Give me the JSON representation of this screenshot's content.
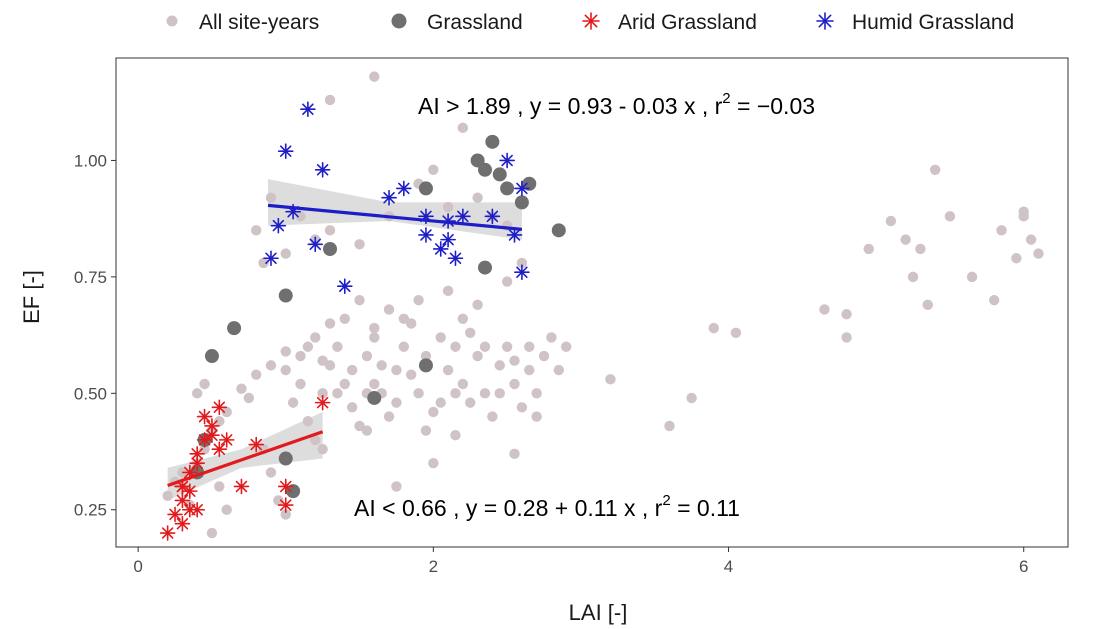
{
  "chart_data": {
    "type": "scatter",
    "xlabel": "LAI [-]",
    "ylabel": "EF [-]",
    "xlim": [
      -0.15,
      6.3
    ],
    "ylim": [
      0.17,
      1.22
    ],
    "x_ticks": [
      0,
      2,
      4,
      6
    ],
    "x_tick_labels": [
      "0",
      "2",
      "4",
      "6"
    ],
    "y_ticks": [
      0.25,
      0.5,
      0.75,
      1.0
    ],
    "y_tick_labels": [
      "0.25",
      "0.50",
      "0.75",
      "1.00"
    ],
    "grid": false,
    "legend_position": "top",
    "colors": {
      "all": "#cfc3c6",
      "grassland": "#6f6f6f",
      "arid": "#e31a1c",
      "humid": "#1e1ec8",
      "ribbon": "#b3b3b3"
    },
    "series": [
      {
        "name": "All site-years",
        "marker": "circle",
        "points": [
          [
            0.2,
            0.28
          ],
          [
            0.25,
            0.31
          ],
          [
            0.3,
            0.33
          ],
          [
            0.35,
            0.26
          ],
          [
            0.4,
            0.35
          ],
          [
            0.45,
            0.38
          ],
          [
            0.5,
            0.42
          ],
          [
            0.55,
            0.44
          ],
          [
            0.4,
            0.5
          ],
          [
            0.45,
            0.52
          ],
          [
            0.6,
            0.46
          ],
          [
            0.7,
            0.51
          ],
          [
            0.75,
            0.49
          ],
          [
            0.8,
            0.54
          ],
          [
            0.85,
            0.38
          ],
          [
            0.9,
            0.33
          ],
          [
            0.95,
            0.27
          ],
          [
            1.0,
            0.24
          ],
          [
            0.5,
            0.2
          ],
          [
            0.55,
            0.3
          ],
          [
            0.6,
            0.25
          ],
          [
            1.0,
            0.55
          ],
          [
            1.05,
            0.48
          ],
          [
            1.1,
            0.52
          ],
          [
            1.15,
            0.44
          ],
          [
            1.2,
            0.4
          ],
          [
            1.25,
            0.5
          ],
          [
            1.3,
            0.56
          ],
          [
            1.35,
            0.6
          ],
          [
            1.4,
            0.52
          ],
          [
            1.45,
            0.47
          ],
          [
            1.5,
            0.43
          ],
          [
            1.55,
            0.58
          ],
          [
            1.6,
            0.62
          ],
          [
            1.65,
            0.5
          ],
          [
            1.7,
            0.45
          ],
          [
            1.75,
            0.55
          ],
          [
            1.8,
            0.6
          ],
          [
            1.85,
            0.65
          ],
          [
            1.9,
            0.5
          ],
          [
            1.95,
            0.42
          ],
          [
            2.0,
            0.35
          ],
          [
            2.05,
            0.48
          ],
          [
            2.1,
            0.55
          ],
          [
            2.15,
            0.6
          ],
          [
            2.2,
            0.52
          ],
          [
            2.25,
            0.63
          ],
          [
            2.3,
            0.58
          ],
          [
            2.35,
            0.5
          ],
          [
            2.4,
            0.45
          ],
          [
            2.45,
            0.56
          ],
          [
            2.5,
            0.6
          ],
          [
            2.55,
            0.52
          ],
          [
            2.6,
            0.47
          ],
          [
            2.65,
            0.55
          ],
          [
            2.7,
            0.5
          ],
          [
            2.75,
            0.58
          ],
          [
            2.8,
            0.62
          ],
          [
            2.85,
            0.55
          ],
          [
            2.9,
            0.6
          ],
          [
            1.2,
            0.62
          ],
          [
            1.3,
            0.65
          ],
          [
            1.5,
            0.7
          ],
          [
            1.7,
            0.68
          ],
          [
            1.9,
            0.7
          ],
          [
            2.1,
            0.72
          ],
          [
            2.3,
            0.69
          ],
          [
            2.5,
            0.74
          ],
          [
            2.2,
            0.66
          ],
          [
            1.8,
            0.66
          ],
          [
            1.6,
            0.64
          ],
          [
            1.4,
            0.66
          ],
          [
            1.0,
            0.59
          ],
          [
            1.1,
            0.58
          ],
          [
            0.9,
            0.56
          ],
          [
            1.25,
            0.57
          ],
          [
            1.45,
            0.55
          ],
          [
            1.55,
            0.5
          ],
          [
            1.65,
            0.56
          ],
          [
            1.75,
            0.48
          ],
          [
            1.85,
            0.54
          ],
          [
            2.0,
            0.46
          ],
          [
            2.05,
            0.62
          ],
          [
            2.15,
            0.5
          ],
          [
            2.25,
            0.48
          ],
          [
            2.35,
            0.6
          ],
          [
            2.45,
            0.5
          ],
          [
            2.55,
            0.57
          ],
          [
            2.65,
            0.6
          ],
          [
            2.7,
            0.45
          ],
          [
            1.15,
            0.6
          ],
          [
            1.35,
            0.5
          ],
          [
            1.6,
            0.52
          ],
          [
            1.95,
            0.58
          ],
          [
            0.8,
            0.85
          ],
          [
            0.85,
            0.78
          ],
          [
            0.9,
            0.92
          ],
          [
            1.0,
            0.8
          ],
          [
            1.1,
            0.88
          ],
          [
            1.2,
            0.83
          ],
          [
            1.3,
            0.85
          ],
          [
            1.5,
            0.82
          ],
          [
            1.7,
            0.88
          ],
          [
            1.9,
            0.95
          ],
          [
            2.0,
            0.98
          ],
          [
            2.1,
            0.9
          ],
          [
            2.2,
            1.07
          ],
          [
            2.3,
            0.92
          ],
          [
            2.4,
            0.88
          ],
          [
            2.5,
            0.86
          ],
          [
            1.3,
            1.13
          ],
          [
            1.6,
            1.18
          ],
          [
            2.6,
            0.78
          ],
          [
            1.25,
            0.38
          ],
          [
            1.55,
            0.42
          ],
          [
            1.75,
            0.3
          ],
          [
            2.15,
            0.41
          ],
          [
            2.55,
            0.37
          ],
          [
            3.2,
            0.53
          ],
          [
            3.6,
            0.43
          ],
          [
            3.75,
            0.49
          ],
          [
            3.9,
            0.64
          ],
          [
            4.05,
            0.63
          ],
          [
            4.65,
            0.68
          ],
          [
            4.8,
            0.67
          ],
          [
            4.8,
            0.62
          ],
          [
            4.95,
            0.81
          ],
          [
            5.1,
            0.87
          ],
          [
            5.2,
            0.83
          ],
          [
            5.25,
            0.75
          ],
          [
            5.3,
            0.81
          ],
          [
            5.35,
            0.69
          ],
          [
            5.4,
            0.98
          ],
          [
            5.5,
            0.88
          ],
          [
            5.65,
            0.75
          ],
          [
            5.8,
            0.7
          ],
          [
            5.85,
            0.85
          ],
          [
            5.95,
            0.79
          ],
          [
            6.0,
            0.88
          ],
          [
            6.0,
            0.89
          ],
          [
            6.05,
            0.83
          ],
          [
            6.1,
            0.8
          ]
        ]
      },
      {
        "name": "Grassland",
        "marker": "circle-large",
        "points": [
          [
            0.65,
            0.64
          ],
          [
            0.5,
            0.58
          ],
          [
            0.45,
            0.4
          ],
          [
            1.0,
            0.71
          ],
          [
            1.3,
            0.81
          ],
          [
            1.6,
            0.49
          ],
          [
            1.95,
            0.94
          ],
          [
            1.95,
            0.56
          ],
          [
            2.3,
            1.0
          ],
          [
            2.35,
            0.98
          ],
          [
            2.4,
            1.04
          ],
          [
            2.45,
            0.97
          ],
          [
            2.5,
            0.94
          ],
          [
            2.6,
            0.91
          ],
          [
            2.65,
            0.95
          ],
          [
            2.35,
            0.77
          ],
          [
            2.85,
            0.85
          ],
          [
            1.0,
            0.36
          ],
          [
            1.05,
            0.29
          ],
          [
            0.4,
            0.33
          ]
        ]
      },
      {
        "name": "Arid Grassland",
        "marker": "asterisk",
        "points": [
          [
            0.2,
            0.2
          ],
          [
            0.25,
            0.24
          ],
          [
            0.3,
            0.22
          ],
          [
            0.3,
            0.27
          ],
          [
            0.35,
            0.25
          ],
          [
            0.3,
            0.3
          ],
          [
            0.35,
            0.33
          ],
          [
            0.4,
            0.37
          ],
          [
            0.45,
            0.4
          ],
          [
            0.5,
            0.43
          ],
          [
            0.55,
            0.47
          ],
          [
            0.5,
            0.41
          ],
          [
            0.55,
            0.38
          ],
          [
            0.6,
            0.4
          ],
          [
            0.45,
            0.45
          ],
          [
            0.4,
            0.35
          ],
          [
            0.3,
            0.3
          ],
          [
            0.35,
            0.29
          ],
          [
            0.7,
            0.3
          ],
          [
            0.8,
            0.39
          ],
          [
            1.0,
            0.3
          ],
          [
            1.0,
            0.26
          ],
          [
            1.25,
            0.48
          ],
          [
            0.4,
            0.25
          ]
        ]
      },
      {
        "name": "Humid Grassland",
        "marker": "asterisk",
        "points": [
          [
            0.9,
            0.79
          ],
          [
            0.95,
            0.86
          ],
          [
            1.0,
            1.02
          ],
          [
            1.05,
            0.89
          ],
          [
            1.15,
            1.11
          ],
          [
            1.2,
            0.82
          ],
          [
            1.25,
            0.98
          ],
          [
            1.4,
            0.73
          ],
          [
            1.7,
            0.92
          ],
          [
            1.8,
            0.94
          ],
          [
            1.95,
            0.84
          ],
          [
            2.05,
            0.81
          ],
          [
            2.1,
            0.83
          ],
          [
            2.15,
            0.79
          ],
          [
            2.2,
            0.88
          ],
          [
            2.4,
            0.88
          ],
          [
            2.5,
            1.0
          ],
          [
            2.55,
            0.84
          ],
          [
            2.6,
            0.94
          ],
          [
            2.6,
            0.76
          ],
          [
            1.95,
            0.88
          ],
          [
            2.1,
            0.87
          ]
        ]
      }
    ],
    "fits": [
      {
        "name": "Humid Grassland",
        "x_range": [
          0.88,
          2.6
        ],
        "intercept": 0.93,
        "slope": -0.03,
        "ci": [
          [
            0.88,
            0.86,
            0.96
          ],
          [
            1.7,
            0.87,
            0.91
          ],
          [
            2.6,
            0.83,
            0.91
          ]
        ]
      },
      {
        "name": "Arid Grassland",
        "x_range": [
          0.2,
          1.25
        ],
        "intercept": 0.28,
        "slope": 0.11,
        "ci": [
          [
            0.2,
            0.27,
            0.34
          ],
          [
            0.7,
            0.34,
            0.38
          ],
          [
            1.25,
            0.36,
            0.46
          ]
        ]
      }
    ],
    "annotations": [
      {
        "prefix": "AI > 1.89 , y = 0.93 - 0.03 x , r",
        "sup": "2",
        "suffix": " = −0.03"
      },
      {
        "prefix": "AI < 0.66 , y = 0.28 + 0.11 x , r",
        "sup": "2",
        "suffix": " = 0.11"
      }
    ]
  }
}
